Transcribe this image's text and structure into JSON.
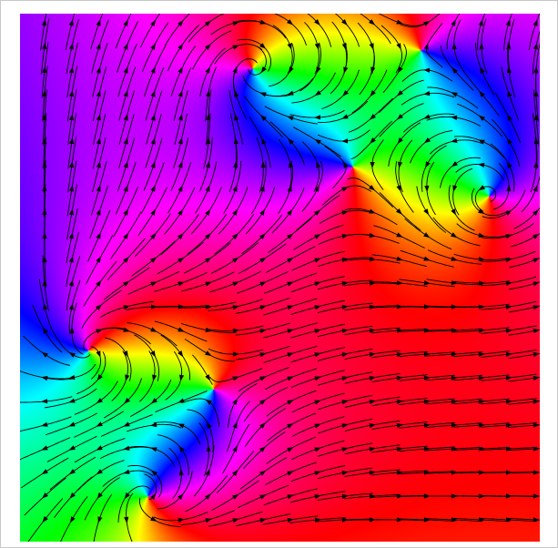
{
  "image": {
    "kind": "phase-colored vector field with streamlines",
    "colormap": "hsv",
    "colors": {
      "background": "#ffffff",
      "frame_border": "#c8c8c8",
      "streamline": "#000000"
    },
    "critical_point_types": [
      "saddle",
      "vortex",
      "vortex",
      "saddle",
      "vortex",
      "saddle",
      "vortex"
    ]
  }
}
